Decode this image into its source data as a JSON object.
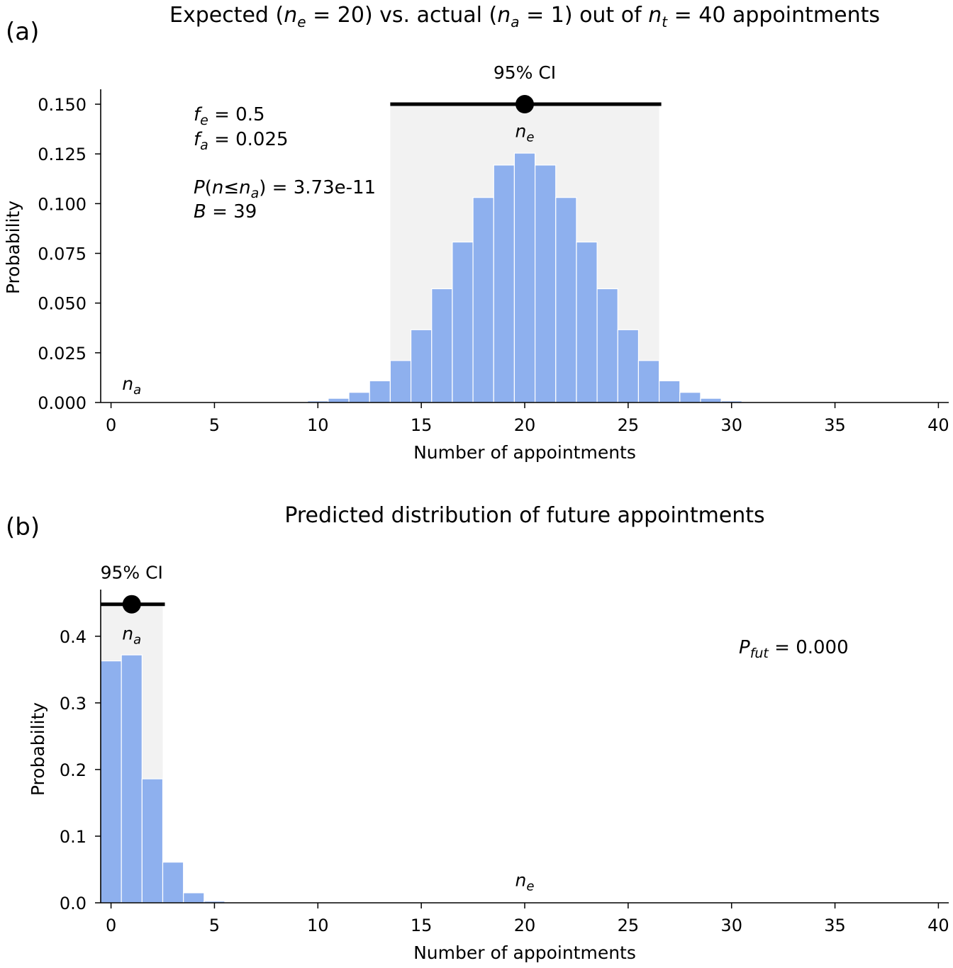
{
  "chart_data": [
    {
      "type": "bar",
      "panel_label": "(a)",
      "title": {
        "prefix": "Expected (",
        "ne_label": "n",
        "ne_sub": "e",
        "ne_eq": " = 20",
        "middle": ") vs. actual (",
        "na_label": "n",
        "na_sub": "a",
        "na_eq": " = 1",
        "middle2": ") out of ",
        "nt_label": "n",
        "nt_sub": "t",
        "nt_eq": " = 40 appointments"
      },
      "xlabel": "Number of appointments",
      "ylabel": "Probability",
      "xlim": [
        -0.5,
        40.5
      ],
      "ylim": [
        0,
        0.1575
      ],
      "xticks": [
        0,
        5,
        10,
        15,
        20,
        25,
        30,
        35,
        40
      ],
      "yticks": [
        "0.000",
        "0.025",
        "0.050",
        "0.075",
        "0.100",
        "0.125",
        "0.150"
      ],
      "ytick_values": [
        0,
        0.025,
        0.05,
        0.075,
        0.1,
        0.125,
        0.15
      ],
      "x": [
        9,
        10,
        11,
        12,
        13,
        14,
        15,
        16,
        17,
        18,
        19,
        20,
        21,
        22,
        23,
        24,
        25,
        26,
        27,
        28,
        29,
        30,
        31
      ],
      "values": [
        0.0002,
        0.0008,
        0.0021,
        0.0051,
        0.0109,
        0.0211,
        0.0366,
        0.0572,
        0.0807,
        0.1031,
        0.1194,
        0.1254,
        0.1194,
        0.1031,
        0.0807,
        0.0572,
        0.0366,
        0.0211,
        0.0109,
        0.0051,
        0.0021,
        0.0008,
        0.0002
      ],
      "bar_color": "#8eb0ee",
      "ci_label": "95% CI",
      "ci_range": [
        13.5,
        26.5
      ],
      "ci_point": 20,
      "ci_y": 0.15,
      "ne_marker": {
        "label": "n",
        "sub": "e",
        "x": 20,
        "y": 0.1335
      },
      "na_marker": {
        "label": "n",
        "sub": "a",
        "x": 1,
        "y": 0.0065
      },
      "stats": {
        "fe_label": "f",
        "fe_sub": "e",
        "fe_value": " = 0.5",
        "fa_label": "f",
        "fa_sub": "a",
        "fa_value": " = 0.025",
        "p_label": "P",
        "p_open": "(",
        "p_n": "n",
        "p_le": "≤",
        "p_na": "n",
        "p_na_sub": "a",
        "p_value": ") = 3.73e-11",
        "b_label": "B",
        "b_value": " = 39"
      }
    },
    {
      "type": "bar",
      "panel_label": "(b)",
      "title": "Predicted distribution of future appointments",
      "xlabel": "Number of appointments",
      "ylabel": "Probability",
      "xlim": [
        -0.5,
        40.5
      ],
      "ylim": [
        0,
        0.47
      ],
      "xticks": [
        0,
        5,
        10,
        15,
        20,
        25,
        30,
        35,
        40
      ],
      "yticks": [
        "0.0",
        "0.1",
        "0.2",
        "0.3",
        "0.4"
      ],
      "ytick_values": [
        0,
        0.1,
        0.2,
        0.3,
        0.4
      ],
      "x": [
        0,
        1,
        2,
        3,
        4,
        5,
        6
      ],
      "values": [
        0.363,
        0.372,
        0.186,
        0.061,
        0.015,
        0.0025,
        0.0004
      ],
      "bar_color": "#8eb0ee",
      "ci_label": "95% CI",
      "ci_range": [
        -0.5,
        2.5
      ],
      "ci_point": 1,
      "ci_y": 0.448,
      "na_marker": {
        "label": "n",
        "sub": "a",
        "x": 1,
        "y": 0.395
      },
      "ne_marker": {
        "label": "n",
        "sub": "e",
        "x": 20,
        "y": 0.025
      },
      "pfut": {
        "label": "P",
        "sub": "fut",
        "value": " = 0.000"
      }
    }
  ]
}
